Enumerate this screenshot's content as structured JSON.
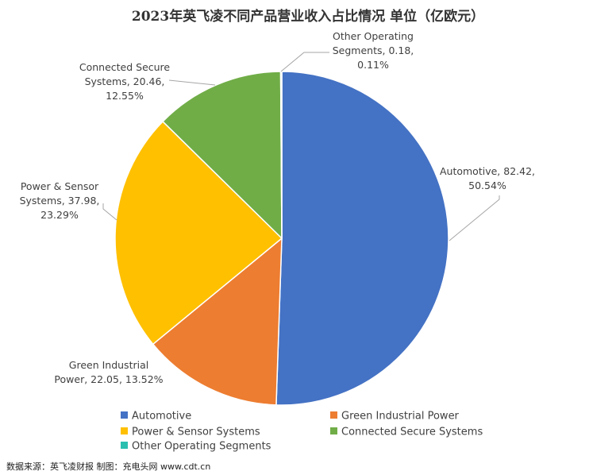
{
  "chart_data": {
    "type": "pie",
    "title": "2023年英飞凌不同产品营业收入占比情况 单位（亿欧元）",
    "start": "12 o'clock, clockwise",
    "slices": [
      {
        "name": "Automotive",
        "value": 82.42,
        "percent": "50.54%",
        "color": "#4472C4",
        "label_lines": [
          "Automotive, 82.42,",
          "50.54%"
        ]
      },
      {
        "name": "Green Industrial Power",
        "value": 22.05,
        "percent": "13.52%",
        "color": "#ED7D31",
        "label_lines": [
          "Green Industrial",
          "Power, 22.05, 13.52%"
        ]
      },
      {
        "name": "Power & Sensor Systems",
        "value": 37.98,
        "percent": "23.29%",
        "color": "#FFC000",
        "label_lines": [
          "Power & Sensor",
          "Systems, 37.98,",
          "23.29%"
        ]
      },
      {
        "name": "Connected Secure Systems",
        "value": 20.46,
        "percent": "12.55%",
        "color": "#70AD47",
        "label_lines": [
          "Connected Secure",
          "Systems, 20.46,",
          "12.55%"
        ]
      },
      {
        "name": "Other Operating Segments",
        "value": 0.18,
        "percent": "0.11%",
        "color": "#2BBFB0",
        "label_lines": [
          "Other Operating",
          "Segments, 0.18,",
          "0.11%"
        ]
      }
    ],
    "legend": {
      "placement": "bottom",
      "items": [
        "Automotive",
        "Green Industrial Power",
        "Power & Sensor Systems",
        "Connected Secure Systems",
        "Other Operating Segments"
      ]
    }
  },
  "source": "数据来源：英飞凌财报 制图：充电头网 www.cdt.cn"
}
